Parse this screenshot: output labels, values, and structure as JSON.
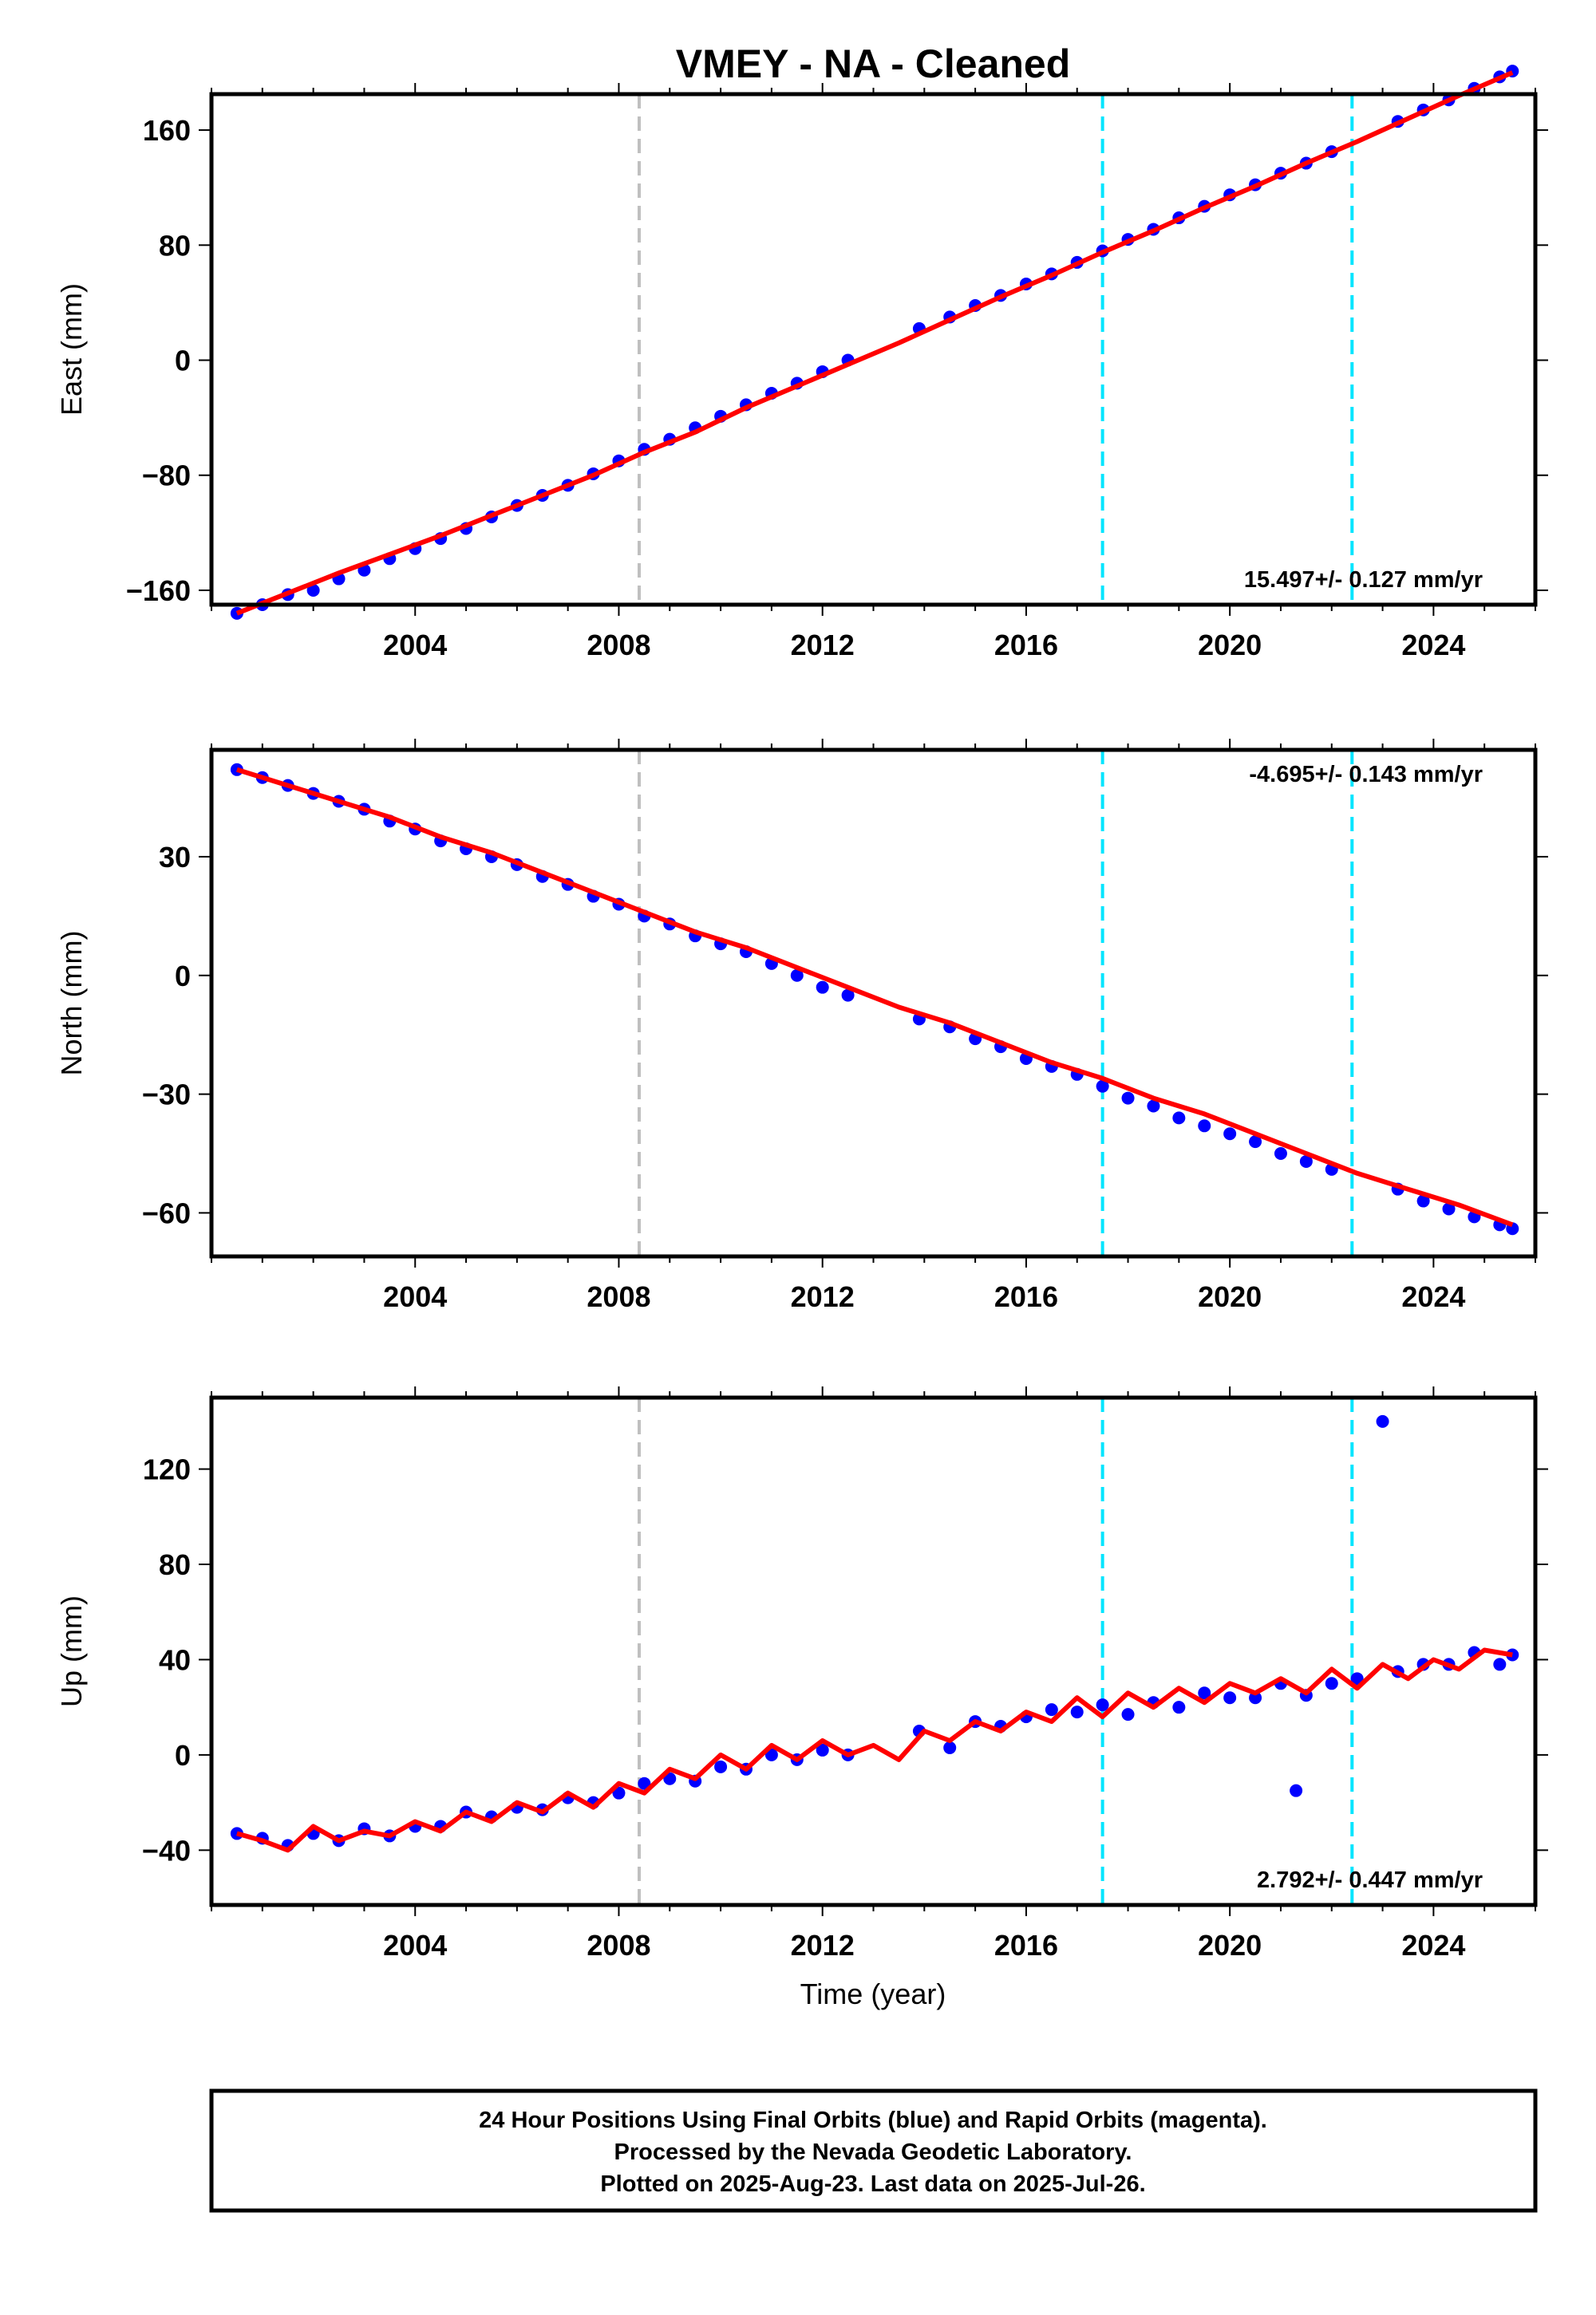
{
  "title": "VMEY  - NA - Cleaned",
  "xlabel": "Time (year)",
  "colors": {
    "final_orbits": "#0000ff",
    "model": "#ff0000",
    "event_gray": "#c0c0c0",
    "event_cyan": "#00e5ff"
  },
  "footer": {
    "line1": "24 Hour Positions Using Final Orbits (blue) and Rapid Orbits (magenta).",
    "line2": "Processed by the Nevada Geodetic Laboratory.",
    "line3": "Plotted on 2025-Aug-23. Last data on 2025-Jul-26."
  },
  "chart_data": [
    {
      "type": "scatter",
      "component": "east",
      "ylabel": "East (mm)",
      "rate_label": "15.497+/- 0.127 mm/yr",
      "xlim": [
        2000.0,
        2026.0
      ],
      "ylim": [
        -170,
        185
      ],
      "xticks": [
        2004,
        2008,
        2012,
        2016,
        2020,
        2024
      ],
      "yticks": [
        -160,
        -80,
        0,
        80,
        160
      ],
      "yticks_display": [
        "−160",
        "−80",
        "0",
        "80",
        "160"
      ],
      "event_lines": [
        {
          "x": 2008.4,
          "color": "gray"
        },
        {
          "x": 2017.5,
          "color": "cyan"
        },
        {
          "x": 2022.4,
          "color": "cyan"
        }
      ],
      "series": [
        {
          "kind": "observations",
          "x": [
            2000.5,
            2001.0,
            2001.5,
            2002.0,
            2002.5,
            2003.0,
            2003.5,
            2004.0,
            2004.5,
            2005.0,
            2005.5,
            2006.0,
            2006.5,
            2007.0,
            2007.5,
            2008.0,
            2008.5,
            2009.0,
            2009.5,
            2010.0,
            2010.5,
            2011.0,
            2011.5,
            2012.0,
            2012.5,
            2013.9,
            2014.5,
            2015.0,
            2015.5,
            2016.0,
            2016.5,
            2017.0,
            2017.5,
            2018.0,
            2018.5,
            2019.0,
            2019.5,
            2020.0,
            2020.5,
            2021.0,
            2021.5,
            2022.0,
            2023.3,
            2023.8,
            2024.3,
            2024.8,
            2025.3,
            2025.55
          ],
          "y": [
            -176,
            -170,
            -163,
            -160,
            -152,
            -146,
            -138,
            -131,
            -124,
            -117,
            -109,
            -101,
            -94,
            -87,
            -79,
            -70,
            -62,
            -55,
            -47,
            -39,
            -31,
            -23,
            -16,
            -8,
            0,
            22,
            30,
            38,
            45,
            53,
            60,
            68,
            76,
            84,
            91,
            99,
            107,
            115,
            122,
            130,
            137,
            145,
            166,
            174,
            181,
            189,
            197,
            201
          ]
        },
        {
          "kind": "model",
          "x": [
            2000.5,
            2001.5,
            2002.5,
            2003.5,
            2004.5,
            2005.5,
            2006.5,
            2007.5,
            2008.5,
            2009.5,
            2010.5,
            2011.5,
            2012.5,
            2013.5,
            2014.5,
            2015.5,
            2016.5,
            2017.5,
            2018.5,
            2019.5,
            2020.5,
            2021.5,
            2022.5,
            2023.5,
            2024.5,
            2025.55
          ],
          "y": [
            -176,
            -162,
            -148,
            -135,
            -122,
            -108,
            -94,
            -80,
            -64,
            -50,
            -33,
            -18,
            -3,
            12,
            28,
            44,
            59,
            75,
            90,
            106,
            121,
            137,
            152,
            168,
            184,
            200
          ]
        }
      ]
    },
    {
      "type": "scatter",
      "component": "north",
      "ylabel": "North (mm)",
      "rate_label": "-4.695+/- 0.143 mm/yr",
      "xlim": [
        2000.0,
        2026.0
      ],
      "ylim": [
        -71,
        57
      ],
      "xticks": [
        2004,
        2008,
        2012,
        2016,
        2020,
        2024
      ],
      "yticks": [
        -60,
        -30,
        0,
        30
      ],
      "yticks_display": [
        "−60",
        "−30",
        "0",
        "30"
      ],
      "event_lines": [
        {
          "x": 2008.4,
          "color": "gray"
        },
        {
          "x": 2017.5,
          "color": "cyan"
        },
        {
          "x": 2022.4,
          "color": "cyan"
        }
      ],
      "series": [
        {
          "kind": "observations",
          "x": [
            2000.5,
            2001.0,
            2001.5,
            2002.0,
            2002.5,
            2003.0,
            2003.5,
            2004.0,
            2004.5,
            2005.0,
            2005.5,
            2006.0,
            2006.5,
            2007.0,
            2007.5,
            2008.0,
            2008.5,
            2009.0,
            2009.5,
            2010.0,
            2010.5,
            2011.0,
            2011.5,
            2012.0,
            2012.5,
            2013.9,
            2014.5,
            2015.0,
            2015.5,
            2016.0,
            2016.5,
            2017.0,
            2017.5,
            2018.0,
            2018.5,
            2019.0,
            2019.5,
            2020.0,
            2020.5,
            2021.0,
            2021.5,
            2022.0,
            2023.3,
            2023.8,
            2024.3,
            2024.8,
            2025.3,
            2025.55
          ],
          "y": [
            52,
            50,
            48,
            46,
            44,
            42,
            39,
            37,
            34,
            32,
            30,
            28,
            25,
            23,
            20,
            18,
            15,
            13,
            10,
            8,
            6,
            3,
            0,
            -3,
            -5,
            -11,
            -13,
            -16,
            -18,
            -21,
            -23,
            -25,
            -28,
            -31,
            -33,
            -36,
            -38,
            -40,
            -42,
            -45,
            -47,
            -49,
            -54,
            -57,
            -59,
            -61,
            -63,
            -64
          ]
        },
        {
          "kind": "model",
          "x": [
            2000.5,
            2001.5,
            2002.5,
            2003.5,
            2004.5,
            2005.5,
            2006.5,
            2007.5,
            2008.5,
            2009.5,
            2010.5,
            2011.5,
            2012.5,
            2013.5,
            2014.5,
            2015.5,
            2016.5,
            2017.5,
            2018.5,
            2019.5,
            2020.5,
            2021.5,
            2022.5,
            2023.5,
            2024.5,
            2025.55
          ],
          "y": [
            52,
            48,
            44,
            40,
            35,
            31,
            26,
            21,
            16,
            11,
            7,
            2,
            -3,
            -8,
            -12,
            -17,
            -22,
            -26,
            -31,
            -35,
            -40,
            -45,
            -50,
            -54,
            -58,
            -63
          ]
        }
      ]
    },
    {
      "type": "scatter",
      "component": "up",
      "ylabel": "Up (mm)",
      "rate_label": "2.792+/- 0.447 mm/yr",
      "xlim": [
        2000.0,
        2026.0
      ],
      "ylim": [
        -63,
        150
      ],
      "xticks": [
        2004,
        2008,
        2012,
        2016,
        2020,
        2024
      ],
      "yticks": [
        -40,
        0,
        40,
        80,
        120
      ],
      "yticks_display": [
        "−40",
        "0",
        "40",
        "80",
        "120"
      ],
      "event_lines": [
        {
          "x": 2008.4,
          "color": "gray"
        },
        {
          "x": 2017.5,
          "color": "cyan"
        },
        {
          "x": 2022.4,
          "color": "cyan"
        }
      ],
      "series": [
        {
          "kind": "observations",
          "x": [
            2000.5,
            2001.0,
            2001.5,
            2002.0,
            2002.5,
            2003.0,
            2003.5,
            2004.0,
            2004.5,
            2005.0,
            2005.5,
            2006.0,
            2006.5,
            2007.0,
            2007.5,
            2008.0,
            2008.5,
            2009.0,
            2009.5,
            2010.0,
            2010.5,
            2011.0,
            2011.5,
            2012.0,
            2012.5,
            2013.9,
            2014.5,
            2015.0,
            2015.5,
            2016.0,
            2016.5,
            2017.0,
            2017.5,
            2018.0,
            2018.5,
            2019.0,
            2019.5,
            2020.0,
            2020.5,
            2021.0,
            2021.3,
            2021.5,
            2022.0,
            2022.5,
            2023.0,
            2023.3,
            2023.8,
            2024.3,
            2024.8,
            2025.3,
            2025.55
          ],
          "y": [
            -33,
            -35,
            -38,
            -33,
            -36,
            -31,
            -34,
            -30,
            -30,
            -24,
            -26,
            -22,
            -23,
            -18,
            -20,
            -16,
            -12,
            -10,
            -11,
            -5,
            -6,
            0,
            -2,
            2,
            0,
            10,
            3,
            14,
            12,
            16,
            19,
            18,
            21,
            17,
            22,
            20,
            26,
            24,
            24,
            30,
            -15,
            25,
            30,
            32,
            140,
            35,
            38,
            38,
            43,
            38,
            42
          ]
        },
        {
          "kind": "model",
          "x": [
            2000.5,
            2001.0,
            2001.5,
            2002.0,
            2002.5,
            2003.0,
            2003.5,
            2004.0,
            2004.5,
            2005.0,
            2005.5,
            2006.0,
            2006.5,
            2007.0,
            2007.5,
            2008.0,
            2008.5,
            2009.0,
            2009.5,
            2010.0,
            2010.5,
            2011.0,
            2011.5,
            2012.0,
            2012.5,
            2013.0,
            2013.5,
            2014.0,
            2014.5,
            2015.0,
            2015.5,
            2016.0,
            2016.5,
            2017.0,
            2017.5,
            2018.0,
            2018.5,
            2019.0,
            2019.5,
            2020.0,
            2020.5,
            2021.0,
            2021.5,
            2022.0,
            2022.5,
            2023.0,
            2023.5,
            2024.0,
            2024.5,
            2025.0,
            2025.55
          ],
          "y": [
            -33,
            -36,
            -40,
            -30,
            -36,
            -32,
            -34,
            -28,
            -32,
            -24,
            -28,
            -20,
            -24,
            -16,
            -22,
            -12,
            -16,
            -6,
            -10,
            0,
            -6,
            4,
            -2,
            6,
            0,
            4,
            -2,
            10,
            6,
            14,
            10,
            18,
            14,
            24,
            16,
            26,
            20,
            28,
            22,
            30,
            26,
            32,
            26,
            36,
            28,
            38,
            32,
            40,
            36,
            44,
            42
          ]
        }
      ]
    }
  ]
}
